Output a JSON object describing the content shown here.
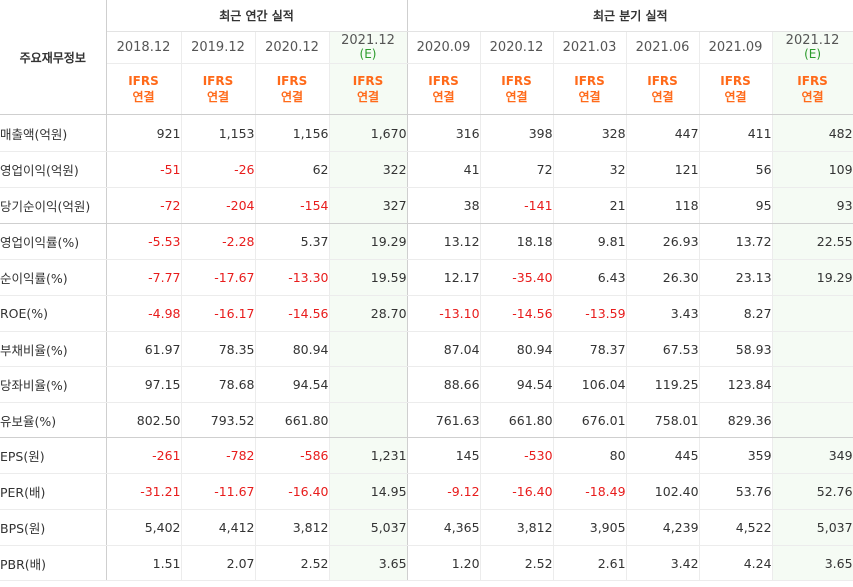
{
  "header": {
    "row_label": "주요재무정보",
    "annual_title": "최근 연간 실적",
    "quarterly_title": "최근 분기 실적",
    "estimate_mark": "(E)"
  },
  "columns": [
    {
      "period": "2018.12",
      "estimate": false,
      "ifrs": "IFRS",
      "basis": "연결"
    },
    {
      "period": "2019.12",
      "estimate": false,
      "ifrs": "IFRS",
      "basis": "연결"
    },
    {
      "period": "2020.12",
      "estimate": false,
      "ifrs": "IFRS",
      "basis": "연결"
    },
    {
      "period": "2021.12",
      "estimate": true,
      "ifrs": "IFRS",
      "basis": "연결"
    },
    {
      "period": "2020.09",
      "estimate": false,
      "ifrs": "IFRS",
      "basis": "연결"
    },
    {
      "period": "2020.12",
      "estimate": false,
      "ifrs": "IFRS",
      "basis": "연결"
    },
    {
      "period": "2021.03",
      "estimate": false,
      "ifrs": "IFRS",
      "basis": "연결"
    },
    {
      "period": "2021.06",
      "estimate": false,
      "ifrs": "IFRS",
      "basis": "연결"
    },
    {
      "period": "2021.09",
      "estimate": false,
      "ifrs": "IFRS",
      "basis": "연결"
    },
    {
      "period": "2021.12",
      "estimate": true,
      "ifrs": "IFRS",
      "basis": "연결"
    }
  ],
  "rows": [
    {
      "label": "매출액(억원)",
      "values": [
        "921",
        "1,153",
        "1,156",
        "1,670",
        "316",
        "398",
        "328",
        "447",
        "411",
        "482"
      ]
    },
    {
      "label": "영업이익(억원)",
      "values": [
        "-51",
        "-26",
        "62",
        "322",
        "41",
        "72",
        "32",
        "121",
        "56",
        "109"
      ]
    },
    {
      "label": "당기순이익(억원)",
      "values": [
        "-72",
        "-204",
        "-154",
        "327",
        "38",
        "-141",
        "21",
        "118",
        "95",
        "93"
      ]
    },
    {
      "label": "영업이익률(%)",
      "values": [
        "-5.53",
        "-2.28",
        "5.37",
        "19.29",
        "13.12",
        "18.18",
        "9.81",
        "26.93",
        "13.72",
        "22.55"
      ]
    },
    {
      "label": "순이익률(%)",
      "values": [
        "-7.77",
        "-17.67",
        "-13.30",
        "19.59",
        "12.17",
        "-35.40",
        "6.43",
        "26.30",
        "23.13",
        "19.29"
      ]
    },
    {
      "label": "ROE(%)",
      "values": [
        "-4.98",
        "-16.17",
        "-14.56",
        "28.70",
        "-13.10",
        "-14.56",
        "-13.59",
        "3.43",
        "8.27",
        ""
      ]
    },
    {
      "label": "부채비율(%)",
      "values": [
        "61.97",
        "78.35",
        "80.94",
        "",
        "87.04",
        "80.94",
        "78.37",
        "67.53",
        "58.93",
        ""
      ]
    },
    {
      "label": "당좌비율(%)",
      "values": [
        "97.15",
        "78.68",
        "94.54",
        "",
        "88.66",
        "94.54",
        "106.04",
        "119.25",
        "123.84",
        ""
      ]
    },
    {
      "label": "유보율(%)",
      "values": [
        "802.50",
        "793.52",
        "661.80",
        "",
        "761.63",
        "661.80",
        "676.01",
        "758.01",
        "829.36",
        ""
      ]
    },
    {
      "label": "EPS(원)",
      "values": [
        "-261",
        "-782",
        "-586",
        "1,231",
        "145",
        "-530",
        "80",
        "445",
        "359",
        "349"
      ]
    },
    {
      "label": "PER(배)",
      "values": [
        "-31.21",
        "-11.67",
        "-16.40",
        "14.95",
        "-9.12",
        "-16.40",
        "-18.49",
        "102.40",
        "53.76",
        "52.76"
      ]
    },
    {
      "label": "BPS(원)",
      "values": [
        "5,402",
        "4,412",
        "3,812",
        "5,037",
        "4,365",
        "3,812",
        "3,905",
        "4,239",
        "4,522",
        "5,037"
      ]
    },
    {
      "label": "PBR(배)",
      "values": [
        "1.51",
        "2.07",
        "2.52",
        "3.65",
        "1.20",
        "2.52",
        "2.61",
        "3.42",
        "4.24",
        "3.65"
      ]
    }
  ],
  "colors": {
    "negative": "#e81c1c",
    "ifrs": "#ff6a1a",
    "estimate_mark": "#2c9b2c",
    "estimate_bg": "#f5fbf4"
  }
}
